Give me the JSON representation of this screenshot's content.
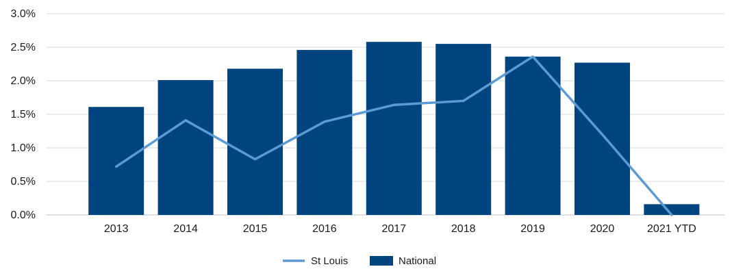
{
  "chart_data": {
    "type": "bar",
    "categories": [
      "2013",
      "2014",
      "2015",
      "2016",
      "2017",
      "2018",
      "2019",
      "2020",
      "2021 YTD"
    ],
    "series": [
      {
        "name": "National",
        "type": "bar",
        "color": "#004480",
        "values": [
          1.61,
          2.01,
          2.18,
          2.46,
          2.58,
          2.55,
          2.36,
          2.27,
          0.16
        ]
      },
      {
        "name": "St Louis",
        "type": "line",
        "color": "#5b9bd5",
        "values": [
          0.72,
          1.41,
          0.83,
          1.39,
          1.64,
          1.7,
          2.36,
          1.2,
          0.0
        ]
      }
    ],
    "ylim": [
      0,
      3.0
    ],
    "yticks": [
      "0.0%",
      "0.5%",
      "1.0%",
      "1.5%",
      "2.0%",
      "2.5%",
      "3.0%"
    ],
    "ytick_values": [
      0,
      0.5,
      1.0,
      1.5,
      2.0,
      2.5,
      3.0
    ],
    "grid": true,
    "legend_position": "bottom-center",
    "legend": [
      {
        "name": "St Louis",
        "marker": "line",
        "color": "#5b9bd5"
      },
      {
        "name": "National",
        "marker": "box",
        "color": "#004480"
      }
    ]
  }
}
